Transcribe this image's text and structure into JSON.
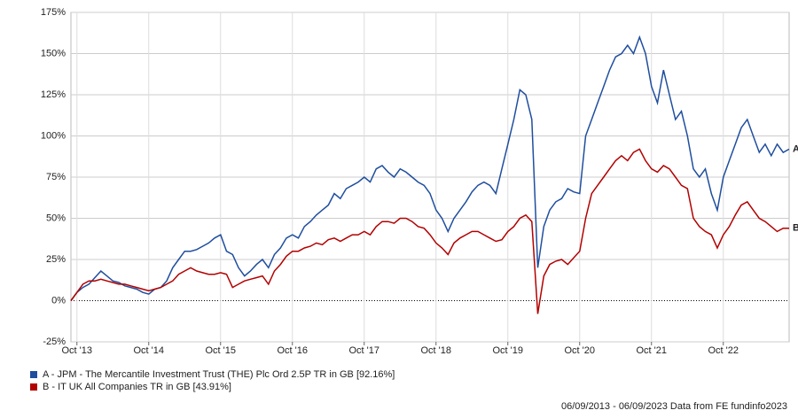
{
  "chart_data": {
    "type": "line",
    "x": [
      "2013-09",
      "2013-10",
      "2013-11",
      "2013-12",
      "2014-01",
      "2014-02",
      "2014-03",
      "2014-04",
      "2014-05",
      "2014-06",
      "2014-07",
      "2014-08",
      "2014-09",
      "2014-10",
      "2014-11",
      "2014-12",
      "2015-01",
      "2015-02",
      "2015-03",
      "2015-04",
      "2015-05",
      "2015-06",
      "2015-07",
      "2015-08",
      "2015-09",
      "2015-10",
      "2015-11",
      "2015-12",
      "2016-01",
      "2016-02",
      "2016-03",
      "2016-04",
      "2016-05",
      "2016-06",
      "2016-07",
      "2016-08",
      "2016-09",
      "2016-10",
      "2016-11",
      "2016-12",
      "2017-01",
      "2017-02",
      "2017-03",
      "2017-04",
      "2017-05",
      "2017-06",
      "2017-07",
      "2017-08",
      "2017-09",
      "2017-10",
      "2017-11",
      "2017-12",
      "2018-01",
      "2018-02",
      "2018-03",
      "2018-04",
      "2018-05",
      "2018-06",
      "2018-07",
      "2018-08",
      "2018-09",
      "2018-10",
      "2018-11",
      "2018-12",
      "2019-01",
      "2019-02",
      "2019-03",
      "2019-04",
      "2019-05",
      "2019-06",
      "2019-07",
      "2019-08",
      "2019-09",
      "2019-10",
      "2019-11",
      "2019-12",
      "2020-01",
      "2020-02",
      "2020-03",
      "2020-04",
      "2020-05",
      "2020-06",
      "2020-07",
      "2020-08",
      "2020-09",
      "2020-10",
      "2020-11",
      "2020-12",
      "2021-01",
      "2021-02",
      "2021-03",
      "2021-04",
      "2021-05",
      "2021-06",
      "2021-07",
      "2021-08",
      "2021-09",
      "2021-10",
      "2021-11",
      "2021-12",
      "2022-01",
      "2022-02",
      "2022-03",
      "2022-04",
      "2022-05",
      "2022-06",
      "2022-07",
      "2022-08",
      "2022-09",
      "2022-10",
      "2022-11",
      "2022-12",
      "2023-01",
      "2023-02",
      "2023-03",
      "2023-04",
      "2023-05",
      "2023-06",
      "2023-07",
      "2023-08",
      "2023-09"
    ],
    "series": [
      {
        "name": "A - JPM - The Mercantile Investment Trust (THE) Plc Ord 2.5P TR in GB [92.16%]",
        "end_label": "A",
        "color": "#1f4e9e",
        "values": [
          0,
          5,
          8,
          10,
          14,
          18,
          15,
          12,
          11,
          9,
          8,
          7,
          5,
          4,
          7,
          8,
          12,
          20,
          25,
          30,
          30,
          31,
          33,
          35,
          38,
          40,
          30,
          28,
          20,
          15,
          18,
          22,
          25,
          20,
          28,
          32,
          38,
          40,
          38,
          45,
          48,
          52,
          55,
          58,
          65,
          62,
          68,
          70,
          72,
          75,
          72,
          80,
          82,
          78,
          75,
          80,
          78,
          75,
          72,
          70,
          65,
          55,
          50,
          42,
          50,
          55,
          60,
          66,
          70,
          72,
          70,
          65,
          80,
          95,
          110,
          128,
          125,
          110,
          20,
          45,
          55,
          60,
          62,
          68,
          66,
          65,
          100,
          110,
          120,
          130,
          140,
          148,
          150,
          155,
          150,
          160,
          150,
          130,
          120,
          140,
          125,
          110,
          115,
          100,
          80,
          75,
          80,
          65,
          55,
          75,
          85,
          95,
          105,
          110,
          100,
          90,
          95,
          88,
          95,
          90,
          92
        ]
      },
      {
        "name": "B - IT UK All Companies TR in GB [43.91%]",
        "end_label": "B",
        "color": "#b30000",
        "values": [
          0,
          5,
          10,
          12,
          12,
          13,
          12,
          11,
          10,
          10,
          9,
          8,
          7,
          6,
          7,
          8,
          10,
          12,
          16,
          18,
          20,
          18,
          17,
          16,
          16,
          17,
          16,
          8,
          10,
          12,
          13,
          14,
          15,
          10,
          18,
          22,
          27,
          30,
          30,
          32,
          33,
          35,
          34,
          37,
          38,
          36,
          38,
          40,
          40,
          42,
          40,
          45,
          48,
          48,
          47,
          50,
          50,
          48,
          45,
          44,
          40,
          35,
          32,
          28,
          35,
          38,
          40,
          42,
          42,
          40,
          38,
          36,
          37,
          42,
          45,
          50,
          52,
          48,
          -8,
          15,
          22,
          24,
          25,
          22,
          26,
          30,
          50,
          65,
          70,
          75,
          80,
          85,
          88,
          85,
          90,
          92,
          85,
          80,
          78,
          82,
          80,
          75,
          70,
          68,
          50,
          45,
          42,
          40,
          32,
          40,
          45,
          52,
          58,
          60,
          55,
          50,
          48,
          45,
          42,
          44,
          44
        ]
      }
    ],
    "xlim": [
      "2013-09",
      "2023-09"
    ],
    "xticks": [
      {
        "value": "2013-10",
        "label": "Oct '13"
      },
      {
        "value": "2014-10",
        "label": "Oct '14"
      },
      {
        "value": "2015-10",
        "label": "Oct '15"
      },
      {
        "value": "2016-10",
        "label": "Oct '16"
      },
      {
        "value": "2017-10",
        "label": "Oct '17"
      },
      {
        "value": "2018-10",
        "label": "Oct '18"
      },
      {
        "value": "2019-10",
        "label": "Oct '19"
      },
      {
        "value": "2020-10",
        "label": "Oct '20"
      },
      {
        "value": "2021-10",
        "label": "Oct '21"
      },
      {
        "value": "2022-10",
        "label": "Oct '22"
      }
    ],
    "ylim": [
      -25,
      175
    ],
    "yticks": [
      {
        "value": -25,
        "label": "-25%"
      },
      {
        "value": 0,
        "label": "0%"
      },
      {
        "value": 25,
        "label": "25%"
      },
      {
        "value": 50,
        "label": "50%"
      },
      {
        "value": 75,
        "label": "75%"
      },
      {
        "value": 100,
        "label": "100%"
      },
      {
        "value": 125,
        "label": "125%"
      },
      {
        "value": 150,
        "label": "150%"
      },
      {
        "value": 175,
        "label": "175%"
      }
    ],
    "grid": true,
    "footer": "06/09/2013 - 06/09/2023 Data from FE fundinfo2023"
  }
}
